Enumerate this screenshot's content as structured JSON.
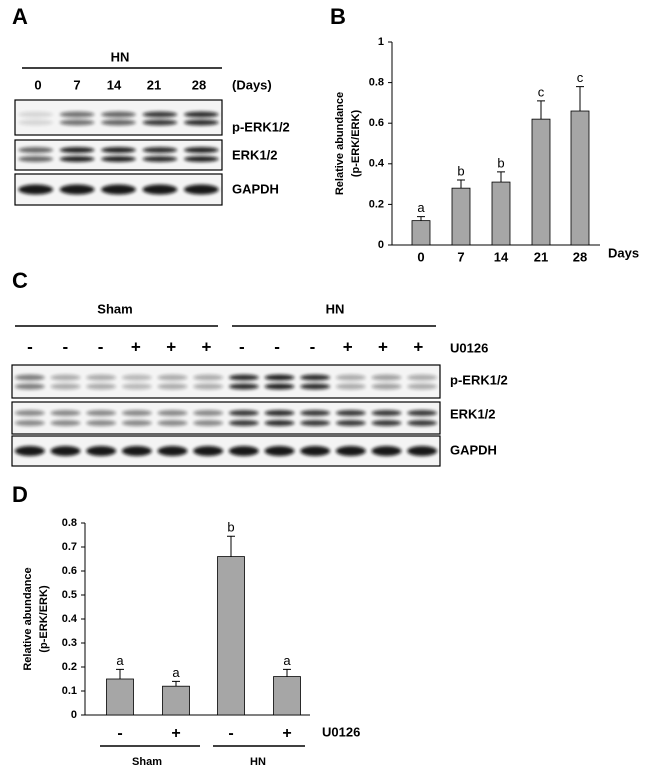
{
  "panels": [
    "A",
    "B",
    "C",
    "D"
  ],
  "blot_a": {
    "group": "HN",
    "lanes": [
      "0",
      "7",
      "14",
      "21",
      "28"
    ],
    "unit": "(Days)",
    "rows": [
      "p-ERK1/2",
      "ERK1/2",
      "GAPDH"
    ]
  },
  "blot_c": {
    "groups": [
      "Sham",
      "HN"
    ],
    "treatments": [
      "-",
      "-",
      "-",
      "+",
      "+",
      "+",
      "-",
      "-",
      "-",
      "+",
      "+",
      "+"
    ],
    "treatment_label": "U0126",
    "rows": [
      "p-ERK1/2",
      "ERK1/2",
      "GAPDH"
    ]
  },
  "chart_data": [
    {
      "type": "bar",
      "ylabel": [
        "Relative abundance",
        "(p-ERK/ERK)"
      ],
      "xlabel": "Days",
      "categories": [
        "0",
        "7",
        "14",
        "21",
        "28"
      ],
      "values": [
        0.12,
        0.28,
        0.31,
        0.62,
        0.66
      ],
      "errors": [
        0.02,
        0.04,
        0.05,
        0.09,
        0.12
      ],
      "letters": [
        "a",
        "b",
        "b",
        "c",
        "c"
      ],
      "color": "#a6a6a6",
      "ylim": [
        0,
        1
      ],
      "yticks": [
        0,
        0.2,
        0.4,
        0.6,
        0.8,
        1
      ]
    },
    {
      "type": "bar",
      "ylabel": [
        "Relative abundance",
        "(p-ERK/ERK)"
      ],
      "xlabel": "U0126",
      "categories": [
        "-",
        "+",
        "-",
        "+"
      ],
      "groups": [
        "Sham",
        "HN"
      ],
      "values": [
        0.15,
        0.12,
        0.66,
        0.16
      ],
      "errors": [
        0.04,
        0.02,
        0.085,
        0.03
      ],
      "letters": [
        "a",
        "a",
        "b",
        "a"
      ],
      "color": "#a6a6a6",
      "ylim": [
        0,
        0.8
      ],
      "yticks": [
        0,
        0.1,
        0.2,
        0.3,
        0.4,
        0.5,
        0.6,
        0.7,
        0.8
      ]
    }
  ]
}
